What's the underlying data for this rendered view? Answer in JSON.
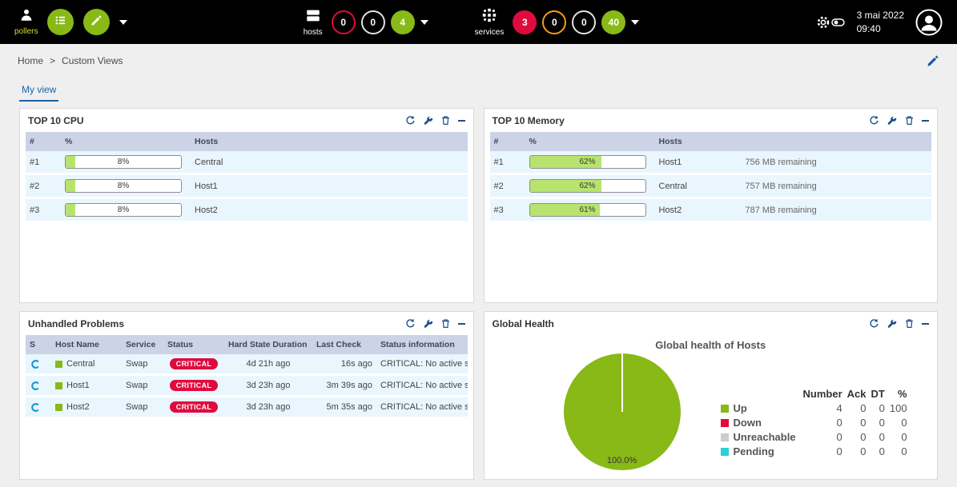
{
  "colors": {
    "accent_green": "#88b917",
    "critical_red": "#e00b3d",
    "warning_orange": "#ff9913",
    "pending_cyan": "#2ad1d4",
    "unreachable_gray": "#cccccc",
    "bar_fill": "#b7e36e"
  },
  "header": {
    "pollers_label": "pollers",
    "hosts": {
      "label": "hosts",
      "badges": [
        "0",
        "0",
        "4"
      ]
    },
    "services": {
      "label": "services",
      "badges": [
        "3",
        "0",
        "0",
        "40"
      ]
    },
    "date": "3 mai 2022",
    "time": "09:40"
  },
  "breadcrumb": {
    "home": "Home",
    "separator": ">",
    "current": "Custom Views"
  },
  "tab": {
    "label": "My view"
  },
  "panels": {
    "top_cpu": {
      "title": "TOP 10 CPU",
      "columns": [
        "#",
        "%",
        "Hosts"
      ],
      "rows": [
        {
          "rank": "#1",
          "percent": "8%",
          "value": 8,
          "host": "Central"
        },
        {
          "rank": "#2",
          "percent": "8%",
          "value": 8,
          "host": "Host1"
        },
        {
          "rank": "#3",
          "percent": "8%",
          "value": 8,
          "host": "Host2"
        }
      ]
    },
    "top_memory": {
      "title": "TOP 10 Memory",
      "columns": [
        "#",
        "%",
        "Hosts"
      ],
      "rows": [
        {
          "rank": "#1",
          "percent": "62%",
          "value": 62,
          "host": "Host1",
          "remaining": "756 MB remaining"
        },
        {
          "rank": "#2",
          "percent": "62%",
          "value": 62,
          "host": "Central",
          "remaining": "757 MB remaining"
        },
        {
          "rank": "#3",
          "percent": "61%",
          "value": 61,
          "host": "Host2",
          "remaining": "787 MB remaining"
        }
      ]
    },
    "unhandled_problems": {
      "title": "Unhandled Problems",
      "columns": [
        "S",
        "Host Name",
        "Service",
        "Status",
        "Hard State Duration",
        "Last Check",
        "Status information"
      ],
      "rows": [
        {
          "host": "Central",
          "service": "Swap",
          "status": "CRITICAL",
          "duration": "4d 21h ago",
          "last_check": "16s ago",
          "info": "CRITICAL: No active swap"
        },
        {
          "host": "Host1",
          "service": "Swap",
          "status": "CRITICAL",
          "duration": "3d 23h ago",
          "last_check": "3m 39s ago",
          "info": "CRITICAL: No active swap"
        },
        {
          "host": "Host2",
          "service": "Swap",
          "status": "CRITICAL",
          "duration": "3d 23h ago",
          "last_check": "5m 35s ago",
          "info": "CRITICAL: No active swap"
        }
      ]
    },
    "global_health": {
      "title": "Global Health",
      "chart_title": "Global health of Hosts",
      "pie_label": "100.0%",
      "legend_headers": [
        "Number",
        "Ack",
        "DT",
        "%"
      ],
      "legend_rows": [
        {
          "label": "Up",
          "number": "4",
          "ack": "0",
          "dt": "0",
          "pct": "100"
        },
        {
          "label": "Down",
          "number": "0",
          "ack": "0",
          "dt": "0",
          "pct": "0"
        },
        {
          "label": "Unreachable",
          "number": "0",
          "ack": "0",
          "dt": "0",
          "pct": "0"
        },
        {
          "label": "Pending",
          "number": "0",
          "ack": "0",
          "dt": "0",
          "pct": "0"
        }
      ]
    }
  },
  "chart_data": {
    "type": "pie",
    "title": "Global health of Hosts",
    "labels": [
      "Up",
      "Down",
      "Unreachable",
      "Pending"
    ],
    "values": [
      100,
      0,
      0,
      0
    ],
    "counts": [
      4,
      0,
      0,
      0
    ],
    "colors": [
      "#88b917",
      "#e00b3d",
      "#cccccc",
      "#2ad1d4"
    ],
    "annotation": "100.0%",
    "legend_position": "right"
  }
}
